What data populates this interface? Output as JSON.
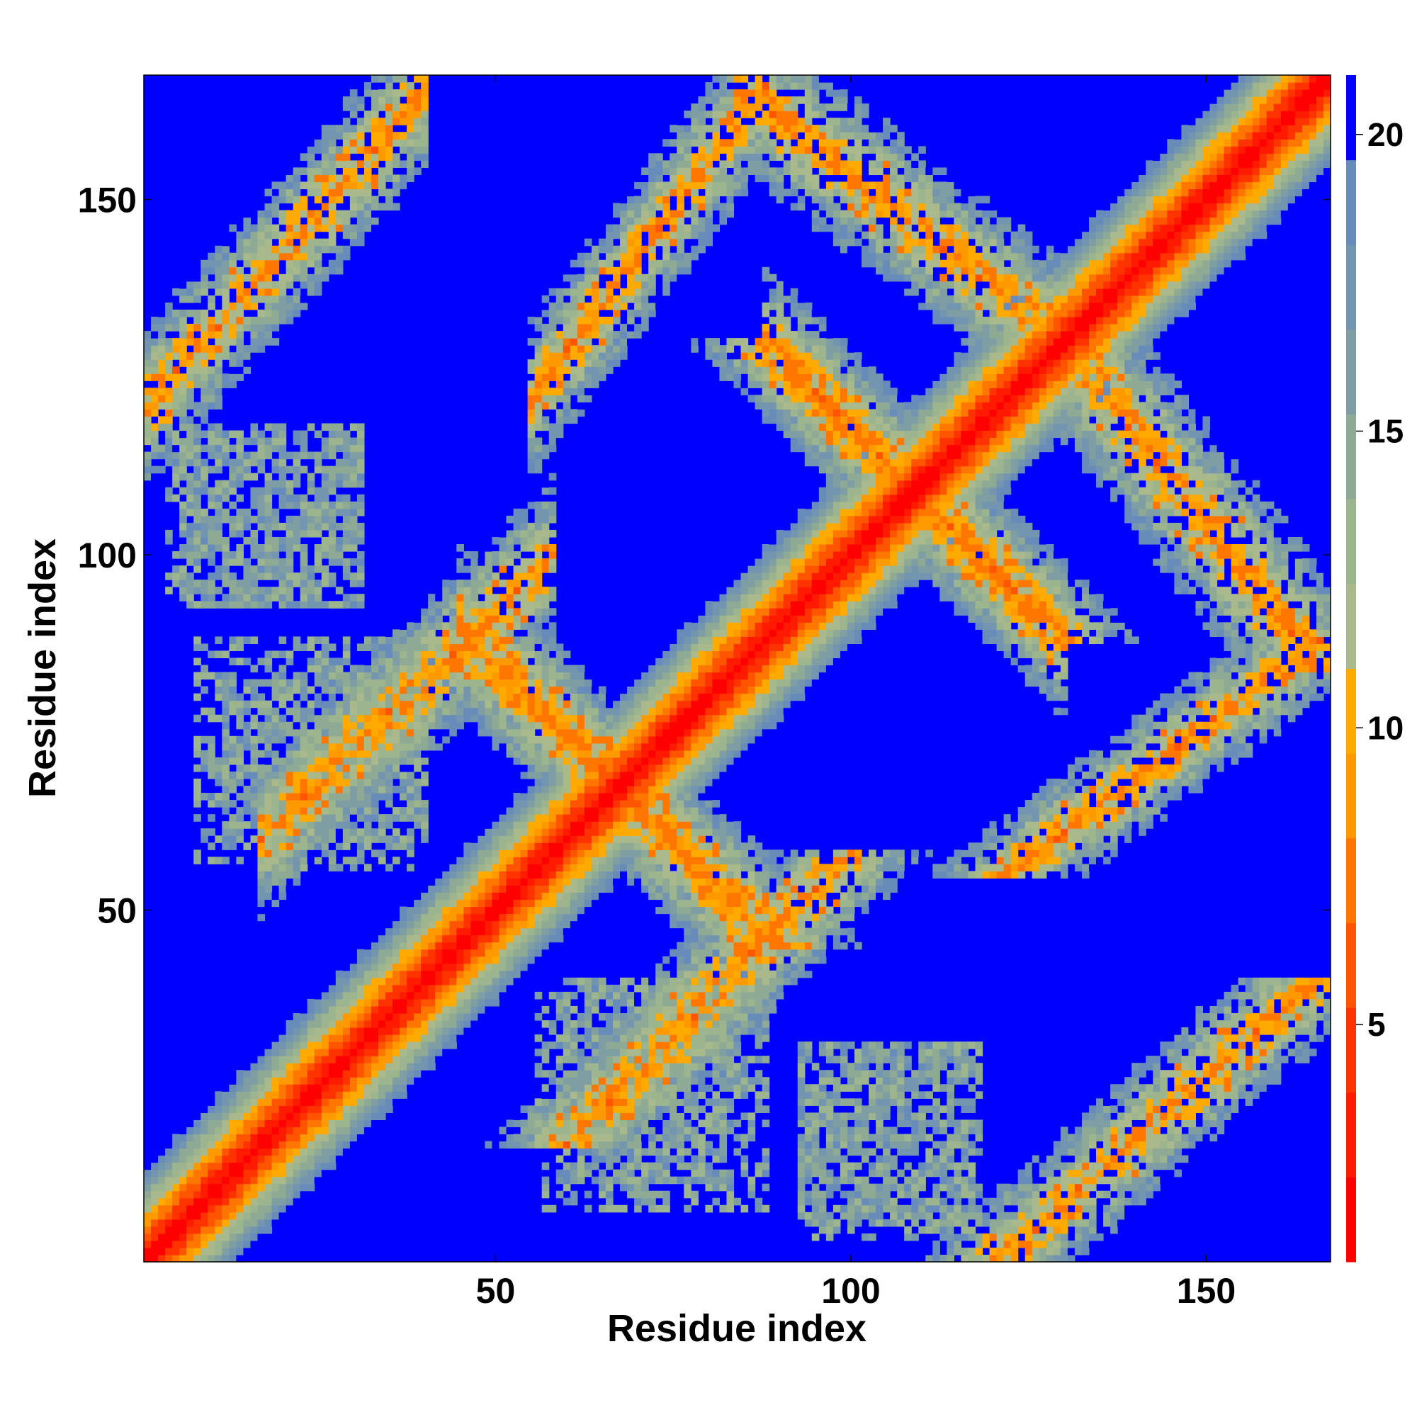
{
  "chart_data": {
    "type": "heatmap",
    "title": "",
    "xlabel": "Residue index",
    "ylabel": "Residue index",
    "xlim": [
      1,
      167
    ],
    "ylim": [
      1,
      167
    ],
    "x_ticks": [
      50,
      100,
      150
    ],
    "y_ticks": [
      50,
      100,
      150
    ],
    "matrix_size": 167,
    "grid": false,
    "colorbar": {
      "ticks": [
        5,
        10,
        15,
        20
      ],
      "range": [
        1,
        21
      ],
      "colors": [
        "#ff0000",
        "#ff1a00",
        "#ff3300",
        "#ff5500",
        "#ff7700",
        "#ff9900",
        "#ffaa00",
        "#a9b98c",
        "#9db58e",
        "#8eaa95",
        "#7f9ea4",
        "#7395b0",
        "#678cb9",
        "#0000ff"
      ]
    },
    "structure": {
      "diagonal": "distance rises from ~1 on the diagonal to ~20 about 13 residues away; beyond the cutoff values saturate at 21 (blue)",
      "contact_bands": [
        {
          "i": [
            45,
            88
          ],
          "j": [
            46,
            90
          ],
          "orientation": "antiparallel"
        },
        {
          "i": [
            88,
            130
          ],
          "j": [
            88,
            130
          ],
          "orientation": "antiparallel"
        },
        {
          "i": [
            55,
            88
          ],
          "j": [
            122,
            166
          ],
          "orientation": "parallel"
        },
        {
          "i": [
            84,
            130
          ],
          "j": [
            130,
            166
          ],
          "orientation": "antiparallel"
        },
        {
          "i": [
            17,
            58
          ],
          "j": [
            60,
            100
          ],
          "orientation": "parallel"
        },
        {
          "i": [
            1,
            40
          ],
          "j": [
            121,
            165
          ],
          "orientation": "parallel"
        }
      ],
      "sparse_patches": [
        {
          "i": [
            4,
            31
          ],
          "j": [
            93,
            117
          ]
        },
        {
          "i": [
            8,
            38
          ],
          "j": [
            56,
            88
          ]
        },
        {
          "i": [
            14,
            40
          ],
          "j": [
            62,
            85
          ]
        },
        {
          "i": [
            93,
            118
          ],
          "j": [
            6,
            31
          ]
        },
        {
          "i": [
            60,
            82
          ],
          "j": [
            12,
            40
          ]
        }
      ]
    }
  }
}
